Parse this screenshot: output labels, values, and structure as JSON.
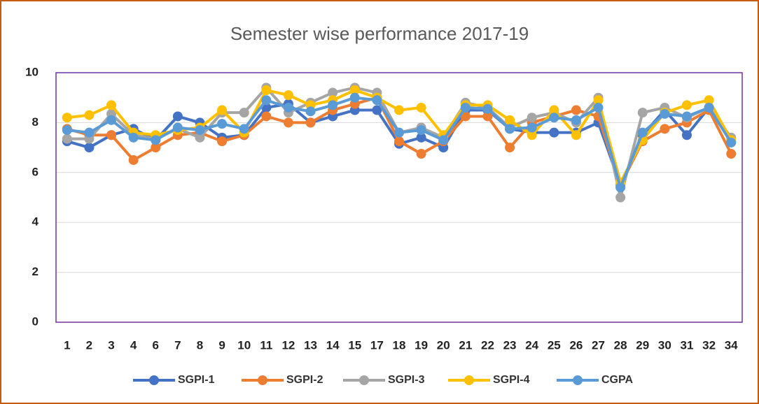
{
  "chart_data": {
    "type": "line",
    "title": "Semester wise performance 2017-19",
    "categories": [
      "1",
      "2",
      "3",
      "4",
      "6",
      "7",
      "8",
      "9",
      "10",
      "11",
      "12",
      "13",
      "14",
      "15",
      "17",
      "18",
      "19",
      "20",
      "21",
      "22",
      "23",
      "24",
      "25",
      "26",
      "27",
      "28",
      "29",
      "30",
      "31",
      "32",
      "34"
    ],
    "ylim": [
      0,
      10
    ],
    "yticks": [
      0,
      2,
      4,
      6,
      8,
      10
    ],
    "grid": true,
    "legend": "bottom",
    "series": [
      {
        "name": "SGPI-1",
        "color": "#4472c4",
        "values": [
          7.25,
          7.0,
          7.5,
          7.75,
          7.3,
          8.25,
          8.0,
          7.4,
          7.5,
          8.6,
          8.75,
          8.0,
          8.25,
          8.5,
          8.5,
          7.15,
          7.4,
          7.0,
          8.5,
          8.5,
          7.75,
          7.6,
          7.6,
          7.6,
          8.0,
          5.5,
          7.5,
          8.5,
          7.5,
          8.6,
          7.25
        ]
      },
      {
        "name": "SGPI-2",
        "color": "#ed7d31",
        "values": [
          7.75,
          7.5,
          7.5,
          6.5,
          7.0,
          7.5,
          7.6,
          7.25,
          7.5,
          8.25,
          8.0,
          8.0,
          8.5,
          8.75,
          9.0,
          7.25,
          6.75,
          7.25,
          8.25,
          8.25,
          7.0,
          8.0,
          8.25,
          8.5,
          8.25,
          5.5,
          7.25,
          7.75,
          8.0,
          8.5,
          6.75
        ]
      },
      {
        "name": "SGPI-3",
        "color": "#a5a5a5",
        "values": [
          7.35,
          7.35,
          8.35,
          7.5,
          7.35,
          7.75,
          7.4,
          8.4,
          8.4,
          9.4,
          8.4,
          8.8,
          9.2,
          9.4,
          9.2,
          7.6,
          7.8,
          7.4,
          8.8,
          8.6,
          7.8,
          8.2,
          8.4,
          8.0,
          9.0,
          5.0,
          8.4,
          8.6,
          8.2,
          8.6,
          7.4
        ]
      },
      {
        "name": "SGPI-4",
        "color": "#ffc000",
        "values": [
          8.2,
          8.3,
          8.7,
          7.6,
          7.5,
          7.7,
          7.8,
          8.5,
          7.6,
          9.3,
          9.1,
          8.7,
          8.9,
          9.3,
          9.0,
          8.5,
          8.6,
          7.5,
          8.7,
          8.7,
          8.1,
          7.5,
          8.5,
          7.5,
          8.9,
          5.6,
          7.3,
          8.4,
          8.7,
          8.9,
          7.3
        ]
      },
      {
        "name": "CGPA",
        "color": "#5b9bd5",
        "values": [
          7.7,
          7.6,
          8.1,
          7.4,
          7.3,
          7.8,
          7.7,
          7.95,
          7.75,
          8.9,
          8.6,
          8.45,
          8.7,
          9.0,
          8.9,
          7.6,
          7.7,
          7.3,
          8.6,
          8.55,
          7.75,
          7.8,
          8.2,
          8.1,
          8.6,
          5.4,
          7.6,
          8.35,
          8.25,
          8.6,
          7.2
        ]
      }
    ]
  }
}
